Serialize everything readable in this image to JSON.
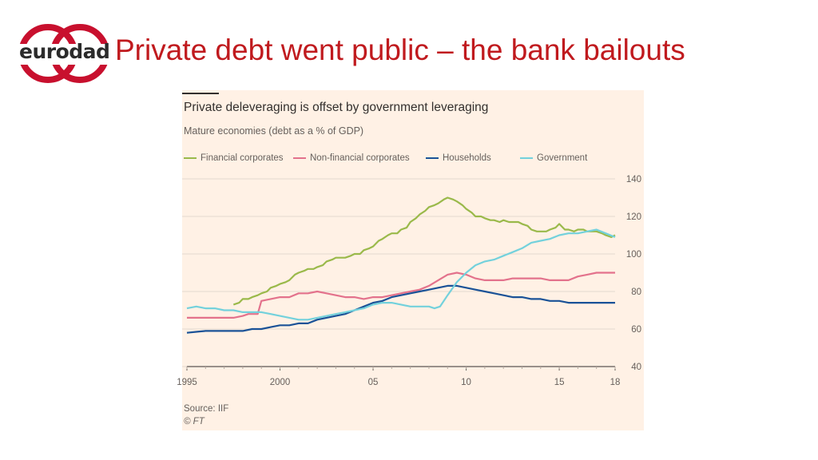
{
  "logo": {
    "text": "eurodad",
    "ring_color": "#c8102e"
  },
  "slide": {
    "title": "Private debt went public – the bank bailouts",
    "title_color": "#c01a1e"
  },
  "chart_data": {
    "type": "line",
    "title": "Private deleveraging is offset by government leveraging",
    "subtitle": "Mature economies (debt as a % of GDP)",
    "xlabel": "",
    "ylabel": "",
    "xlim": [
      1995,
      2018
    ],
    "ylim": [
      40,
      140
    ],
    "yticks": [
      40,
      60,
      80,
      100,
      120,
      140
    ],
    "xticks": [
      1995,
      2000,
      2005,
      2010,
      2015,
      2018
    ],
    "xtick_labels": [
      "1995",
      "2000",
      "05",
      "10",
      "15",
      "18"
    ],
    "grid": true,
    "legend_position": "top",
    "source": "Source: IIF",
    "credit": "© FT",
    "series": [
      {
        "name": "Financial corporates",
        "color": "#9ab94a",
        "x": [
          1997.5,
          1997.8,
          1998,
          1998.3,
          1998.5,
          1998.8,
          1999,
          1999.3,
          1999.5,
          1999.8,
          2000,
          2000.3,
          2000.5,
          2000.8,
          2001,
          2001.3,
          2001.5,
          2001.8,
          2002,
          2002.3,
          2002.5,
          2002.8,
          2003,
          2003.3,
          2003.5,
          2003.8,
          2004,
          2004.3,
          2004.5,
          2004.8,
          2005,
          2005.3,
          2005.5,
          2005.8,
          2006,
          2006.3,
          2006.5,
          2006.8,
          2007,
          2007.3,
          2007.5,
          2007.8,
          2008,
          2008.3,
          2008.5,
          2008.8,
          2009,
          2009.3,
          2009.5,
          2009.8,
          2010,
          2010.3,
          2010.5,
          2010.8,
          2011,
          2011.3,
          2011.5,
          2011.8,
          2012,
          2012.3,
          2012.5,
          2012.8,
          2013,
          2013.3,
          2013.5,
          2013.8,
          2014,
          2014.3,
          2014.5,
          2014.8,
          2015,
          2015.3,
          2015.5,
          2015.8,
          2016,
          2016.3,
          2016.5,
          2016.8,
          2017,
          2017.3,
          2017.5,
          2017.8,
          2018
        ],
        "values": [
          73,
          74,
          76,
          76,
          77,
          78,
          79,
          80,
          82,
          83,
          84,
          85,
          86,
          89,
          90,
          91,
          92,
          92,
          93,
          94,
          96,
          97,
          98,
          98,
          98,
          99,
          100,
          100,
          102,
          103,
          104,
          107,
          108,
          110,
          111,
          111,
          113,
          114,
          117,
          119,
          121,
          123,
          125,
          126,
          127,
          129,
          130,
          129,
          128,
          126,
          124,
          122,
          120,
          120,
          119,
          118,
          118,
          117,
          118,
          117,
          117,
          117,
          116,
          115,
          113,
          112,
          112,
          112,
          113,
          114,
          116,
          113,
          113,
          112,
          113,
          113,
          112,
          112,
          112,
          111,
          110,
          109,
          110
        ]
      },
      {
        "name": "Non-financial corporates",
        "color": "#e3728c",
        "x": [
          1995,
          1995.5,
          1996,
          1996.5,
          1997,
          1997.5,
          1998,
          1998.3,
          1998.6,
          1998.8,
          1999,
          1999.5,
          2000,
          2000.5,
          2001,
          2001.5,
          2002,
          2002.5,
          2003,
          2003.5,
          2004,
          2004.5,
          2005,
          2005.5,
          2006,
          2006.5,
          2007,
          2007.5,
          2008,
          2008.5,
          2009,
          2009.5,
          2010,
          2010.5,
          2011,
          2011.5,
          2012,
          2012.5,
          2013,
          2013.5,
          2014,
          2014.5,
          2015,
          2015.5,
          2016,
          2016.5,
          2017,
          2017.5,
          2018
        ],
        "values": [
          66,
          66,
          66,
          66,
          66,
          66,
          67,
          68,
          68,
          68,
          75,
          76,
          77,
          77,
          79,
          79,
          80,
          79,
          78,
          77,
          77,
          76,
          77,
          77,
          78,
          79,
          80,
          81,
          83,
          86,
          89,
          90,
          89,
          87,
          86,
          86,
          86,
          87,
          87,
          87,
          87,
          86,
          86,
          86,
          88,
          89,
          90,
          90,
          90
        ]
      },
      {
        "name": "Households",
        "color": "#1a5297",
        "x": [
          1995,
          1995.5,
          1996,
          1996.5,
          1997,
          1997.5,
          1998,
          1998.5,
          1999,
          1999.5,
          2000,
          2000.5,
          2001,
          2001.5,
          2002,
          2002.5,
          2003,
          2003.5,
          2004,
          2004.5,
          2005,
          2005.5,
          2006,
          2006.5,
          2007,
          2007.5,
          2008,
          2008.5,
          2009,
          2009.5,
          2010,
          2010.5,
          2011,
          2011.5,
          2012,
          2012.5,
          2013,
          2013.5,
          2014,
          2014.5,
          2015,
          2015.5,
          2016,
          2016.5,
          2017,
          2017.5,
          2018
        ],
        "values": [
          58,
          58.5,
          59,
          59,
          59,
          59,
          59,
          60,
          60,
          61,
          62,
          62,
          63,
          63,
          65,
          66,
          67,
          68,
          70,
          72,
          74,
          75,
          77,
          78,
          79,
          80,
          81,
          82,
          83,
          83,
          82,
          81,
          80,
          79,
          78,
          77,
          77,
          76,
          76,
          75,
          75,
          74,
          74,
          74,
          74,
          74,
          74
        ]
      },
      {
        "name": "Government",
        "color": "#73d1dc",
        "x": [
          1995,
          1995.5,
          1996,
          1996.5,
          1997,
          1997.5,
          1998,
          1998.5,
          1999,
          1999.5,
          2000,
          2000.5,
          2001,
          2001.5,
          2002,
          2002.5,
          2003,
          2003.5,
          2004,
          2004.5,
          2005,
          2005.5,
          2006,
          2006.5,
          2007,
          2007.5,
          2008,
          2008.3,
          2008.6,
          2009,
          2009.5,
          2010,
          2010.5,
          2011,
          2011.5,
          2012,
          2012.5,
          2013,
          2013.5,
          2014,
          2014.5,
          2015,
          2015.5,
          2016,
          2016.5,
          2017,
          2017.5,
          2018
        ],
        "values": [
          71,
          72,
          71,
          71,
          70,
          70,
          69,
          69,
          69,
          68,
          67,
          66,
          65,
          65,
          66,
          67,
          68,
          69,
          70,
          71,
          73,
          74,
          74,
          73,
          72,
          72,
          72,
          71,
          72,
          78,
          85,
          90,
          94,
          96,
          97,
          99,
          101,
          103,
          106,
          107,
          108,
          110,
          111,
          111,
          112,
          113,
          111,
          109
        ]
      }
    ]
  }
}
